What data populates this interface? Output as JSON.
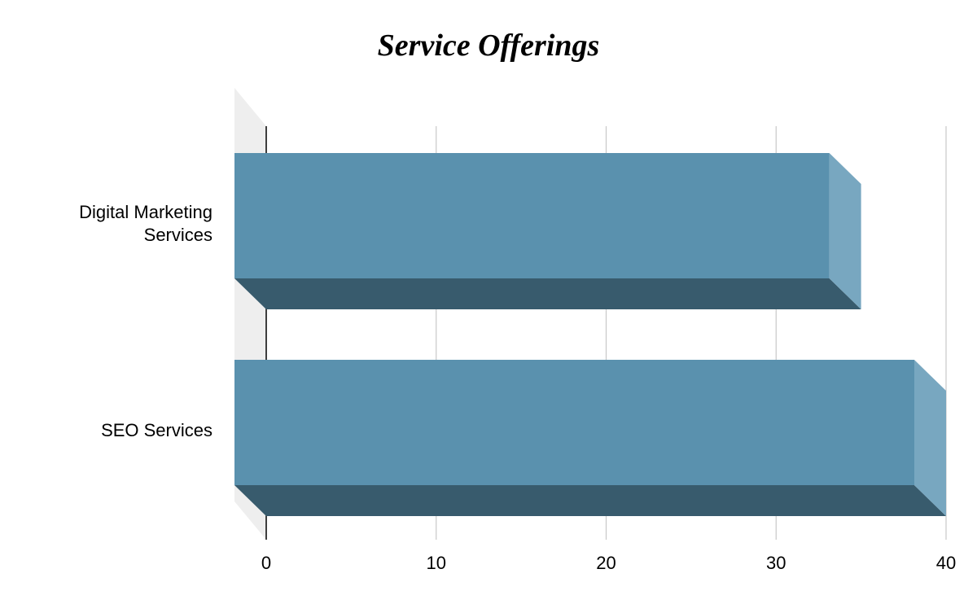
{
  "chart_data": {
    "type": "bar",
    "orientation": "horizontal",
    "three_d": true,
    "title": "Service Offerings",
    "xlabel": "",
    "ylabel": "",
    "categories": [
      [
        "Digital Marketing",
        "Services"
      ],
      [
        "SEO Services"
      ]
    ],
    "values": [
      35,
      40
    ],
    "xlim": [
      0,
      40
    ],
    "xticks": [
      "0",
      "10",
      "20",
      "30",
      "40"
    ],
    "grid": true,
    "legend": "none",
    "colors": {
      "bar_front": "#5a91ae",
      "bar_side": "#78a7c0",
      "bar_bottom": "#385b6d",
      "wall": "#eeeeee",
      "grid": "#c8c8c8",
      "axis": "#000000"
    }
  }
}
